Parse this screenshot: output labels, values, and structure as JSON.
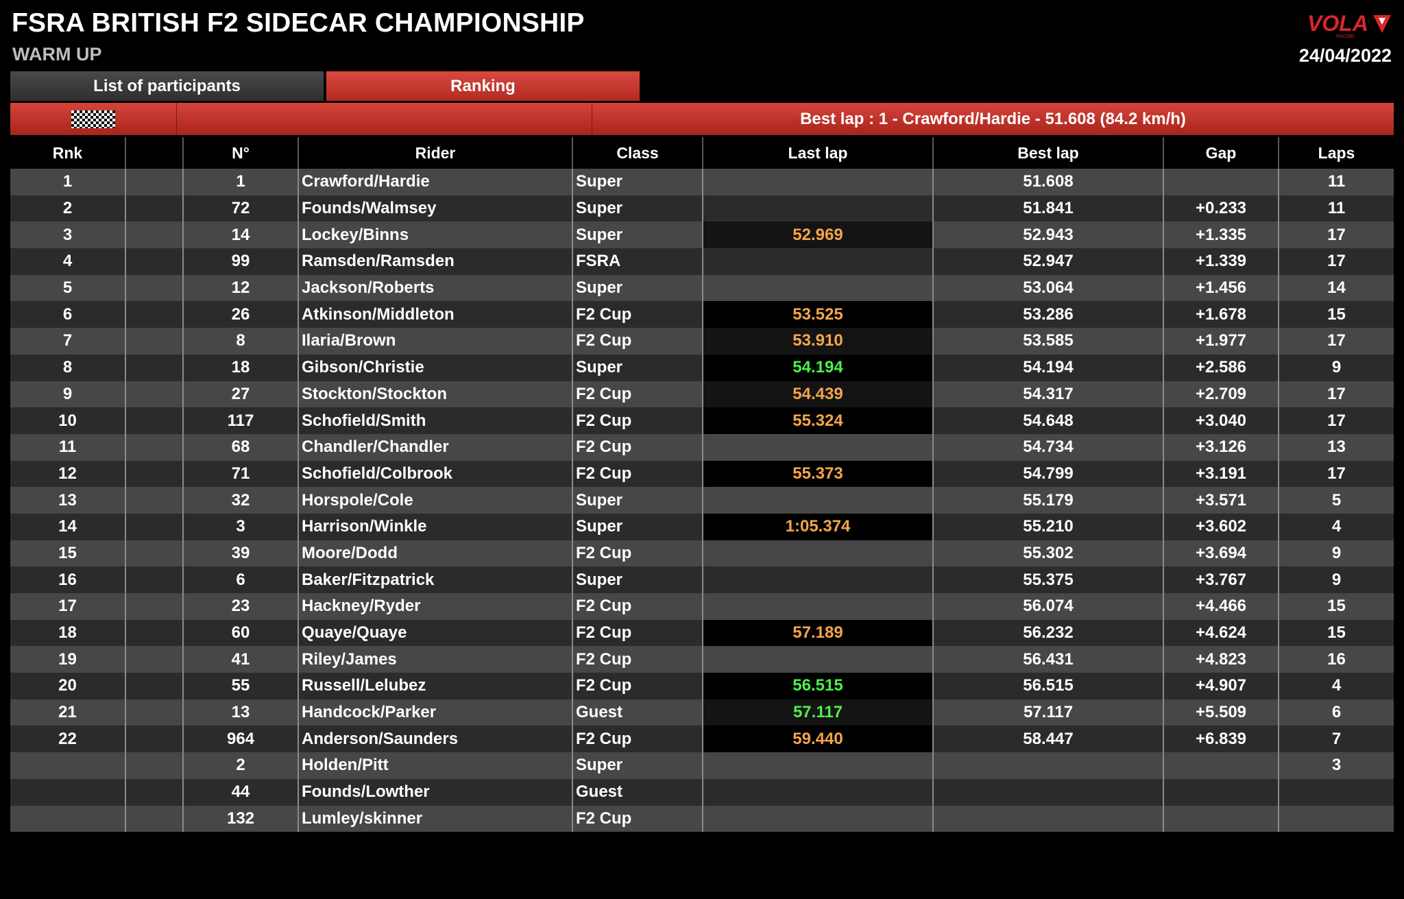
{
  "header": {
    "title": "FSRA BRITISH F2 SIDECAR CHAMPIONSHIP",
    "session": "WARM UP",
    "date": "24/04/2022",
    "logo_text": "VOLA",
    "logo_sub": "RACING"
  },
  "tabs": [
    {
      "label": "List of participants",
      "active": false
    },
    {
      "label": "Ranking",
      "active": true
    }
  ],
  "best_lap_banner": "Best lap : 1 - Crawford/Hardie - 51.608 (84.2 km/h)",
  "columns": [
    "Rnk",
    "",
    "N°",
    "Rider",
    "Class",
    "Last lap",
    "Best lap",
    "Gap",
    "Laps"
  ],
  "colors": {
    "accent": "#c9332a",
    "orange": "#f5a54a",
    "green": "#4cf04c"
  },
  "rows": [
    {
      "rnk": "1",
      "no": "1",
      "rider": "Crawford/Hardie",
      "class": "Super",
      "last": "",
      "last_color": "",
      "best": "51.608",
      "gap": "",
      "laps": "11"
    },
    {
      "rnk": "2",
      "no": "72",
      "rider": "Founds/Walmsey",
      "class": "Super",
      "last": "",
      "last_color": "",
      "best": "51.841",
      "gap": "+0.233",
      "laps": "11"
    },
    {
      "rnk": "3",
      "no": "14",
      "rider": "Lockey/Binns",
      "class": "Super",
      "last": "52.969",
      "last_color": "orange",
      "best": "52.943",
      "gap": "+1.335",
      "laps": "17"
    },
    {
      "rnk": "4",
      "no": "99",
      "rider": "Ramsden/Ramsden",
      "class": "FSRA",
      "last": "",
      "last_color": "",
      "best": "52.947",
      "gap": "+1.339",
      "laps": "17"
    },
    {
      "rnk": "5",
      "no": "12",
      "rider": "Jackson/Roberts",
      "class": "Super",
      "last": "",
      "last_color": "",
      "best": "53.064",
      "gap": "+1.456",
      "laps": "14"
    },
    {
      "rnk": "6",
      "no": "26",
      "rider": "Atkinson/Middleton",
      "class": "F2 Cup",
      "last": "53.525",
      "last_color": "orange",
      "best": "53.286",
      "gap": "+1.678",
      "laps": "15"
    },
    {
      "rnk": "7",
      "no": "8",
      "rider": "Ilaria/Brown",
      "class": "F2 Cup",
      "last": "53.910",
      "last_color": "orange",
      "best": "53.585",
      "gap": "+1.977",
      "laps": "17"
    },
    {
      "rnk": "8",
      "no": "18",
      "rider": "Gibson/Christie",
      "class": "Super",
      "last": "54.194",
      "last_color": "green",
      "best": "54.194",
      "gap": "+2.586",
      "laps": "9"
    },
    {
      "rnk": "9",
      "no": "27",
      "rider": "Stockton/Stockton",
      "class": "F2 Cup",
      "last": "54.439",
      "last_color": "orange",
      "best": "54.317",
      "gap": "+2.709",
      "laps": "17"
    },
    {
      "rnk": "10",
      "no": "117",
      "rider": "Schofield/Smith",
      "class": "F2 Cup",
      "last": "55.324",
      "last_color": "orange",
      "best": "54.648",
      "gap": "+3.040",
      "laps": "17"
    },
    {
      "rnk": "11",
      "no": "68",
      "rider": "Chandler/Chandler",
      "class": "F2 Cup",
      "last": "",
      "last_color": "",
      "best": "54.734",
      "gap": "+3.126",
      "laps": "13"
    },
    {
      "rnk": "12",
      "no": "71",
      "rider": "Schofield/Colbrook",
      "class": "F2 Cup",
      "last": "55.373",
      "last_color": "orange",
      "best": "54.799",
      "gap": "+3.191",
      "laps": "17"
    },
    {
      "rnk": "13",
      "no": "32",
      "rider": "Horspole/Cole",
      "class": "Super",
      "last": "",
      "last_color": "",
      "best": "55.179",
      "gap": "+3.571",
      "laps": "5"
    },
    {
      "rnk": "14",
      "no": "3",
      "rider": "Harrison/Winkle",
      "class": "Super",
      "last": "1:05.374",
      "last_color": "orange",
      "best": "55.210",
      "gap": "+3.602",
      "laps": "4"
    },
    {
      "rnk": "15",
      "no": "39",
      "rider": "Moore/Dodd",
      "class": "F2 Cup",
      "last": "",
      "last_color": "",
      "best": "55.302",
      "gap": "+3.694",
      "laps": "9"
    },
    {
      "rnk": "16",
      "no": "6",
      "rider": "Baker/Fitzpatrick",
      "class": "Super",
      "last": "",
      "last_color": "",
      "best": "55.375",
      "gap": "+3.767",
      "laps": "9"
    },
    {
      "rnk": "17",
      "no": "23",
      "rider": "Hackney/Ryder",
      "class": "F2 Cup",
      "last": "",
      "last_color": "",
      "best": "56.074",
      "gap": "+4.466",
      "laps": "15"
    },
    {
      "rnk": "18",
      "no": "60",
      "rider": "Quaye/Quaye",
      "class": "F2 Cup",
      "last": "57.189",
      "last_color": "orange",
      "best": "56.232",
      "gap": "+4.624",
      "laps": "15"
    },
    {
      "rnk": "19",
      "no": "41",
      "rider": "Riley/James",
      "class": "F2 Cup",
      "last": "",
      "last_color": "",
      "best": "56.431",
      "gap": "+4.823",
      "laps": "16"
    },
    {
      "rnk": "20",
      "no": "55",
      "rider": "Russell/Lelubez",
      "class": "F2 Cup",
      "last": "56.515",
      "last_color": "green",
      "best": "56.515",
      "gap": "+4.907",
      "laps": "4"
    },
    {
      "rnk": "21",
      "no": "13",
      "rider": "Handcock/Parker",
      "class": "Guest",
      "last": "57.117",
      "last_color": "green",
      "best": "57.117",
      "gap": "+5.509",
      "laps": "6"
    },
    {
      "rnk": "22",
      "no": "964",
      "rider": "Anderson/Saunders",
      "class": "F2 Cup",
      "last": "59.440",
      "last_color": "orange",
      "best": "58.447",
      "gap": "+6.839",
      "laps": "7"
    },
    {
      "rnk": "",
      "no": "2",
      "rider": "Holden/Pitt",
      "class": "Super",
      "last": "",
      "last_color": "",
      "best": "",
      "gap": "",
      "laps": "3"
    },
    {
      "rnk": "",
      "no": "44",
      "rider": "Founds/Lowther",
      "class": "Guest",
      "last": "",
      "last_color": "",
      "best": "",
      "gap": "",
      "laps": ""
    },
    {
      "rnk": "",
      "no": "132",
      "rider": "Lumley/skinner",
      "class": "F2 Cup",
      "last": "",
      "last_color": "",
      "best": "",
      "gap": "",
      "laps": ""
    }
  ]
}
